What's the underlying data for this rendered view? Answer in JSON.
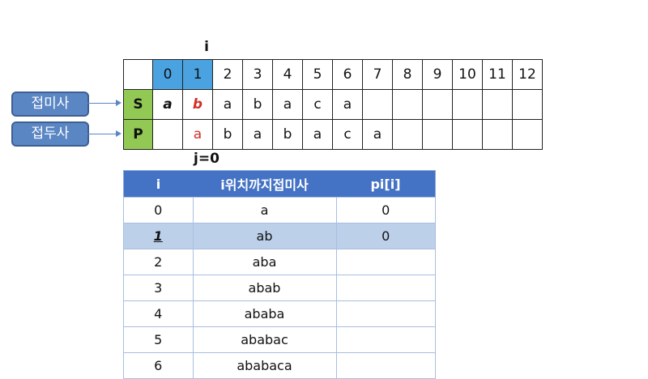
{
  "i_label": "i",
  "j_label": "j=0",
  "grid": {
    "header": [
      "",
      "0",
      "1",
      "2",
      "3",
      "4",
      "5",
      "6",
      "7",
      "8",
      "9",
      "10",
      "11",
      "12"
    ],
    "highlight_cols": [
      "0",
      "1"
    ],
    "rows": [
      {
        "key": "S",
        "cells": [
          "a",
          "b",
          "a",
          "b",
          "a",
          "c",
          "a",
          "",
          "",
          "",
          "",
          "",
          ""
        ]
      },
      {
        "key": "P",
        "cells": [
          "",
          "a",
          "b",
          "a",
          "b",
          "a",
          "c",
          "a",
          "",
          "",
          "",
          "",
          ""
        ]
      }
    ]
  },
  "boxes": {
    "suffix": "접미사",
    "prefix": "접두사"
  },
  "colors": {
    "highlight": "#4aa3e0",
    "key": "#92c954",
    "accent_red": "#d0302a",
    "table_header": "#4472c4",
    "selected_row": "#bdd0e9"
  },
  "table": {
    "headers": [
      "i",
      "i위치까지접미사",
      "pi[i]"
    ],
    "rows": [
      [
        "0",
        "a",
        "0"
      ],
      [
        "1",
        "ab",
        "0"
      ],
      [
        "2",
        "aba",
        ""
      ],
      [
        "3",
        "abab",
        ""
      ],
      [
        "4",
        "ababa",
        ""
      ],
      [
        "5",
        "ababac",
        ""
      ],
      [
        "6",
        "ababaca",
        ""
      ]
    ],
    "selected_row": "1"
  }
}
